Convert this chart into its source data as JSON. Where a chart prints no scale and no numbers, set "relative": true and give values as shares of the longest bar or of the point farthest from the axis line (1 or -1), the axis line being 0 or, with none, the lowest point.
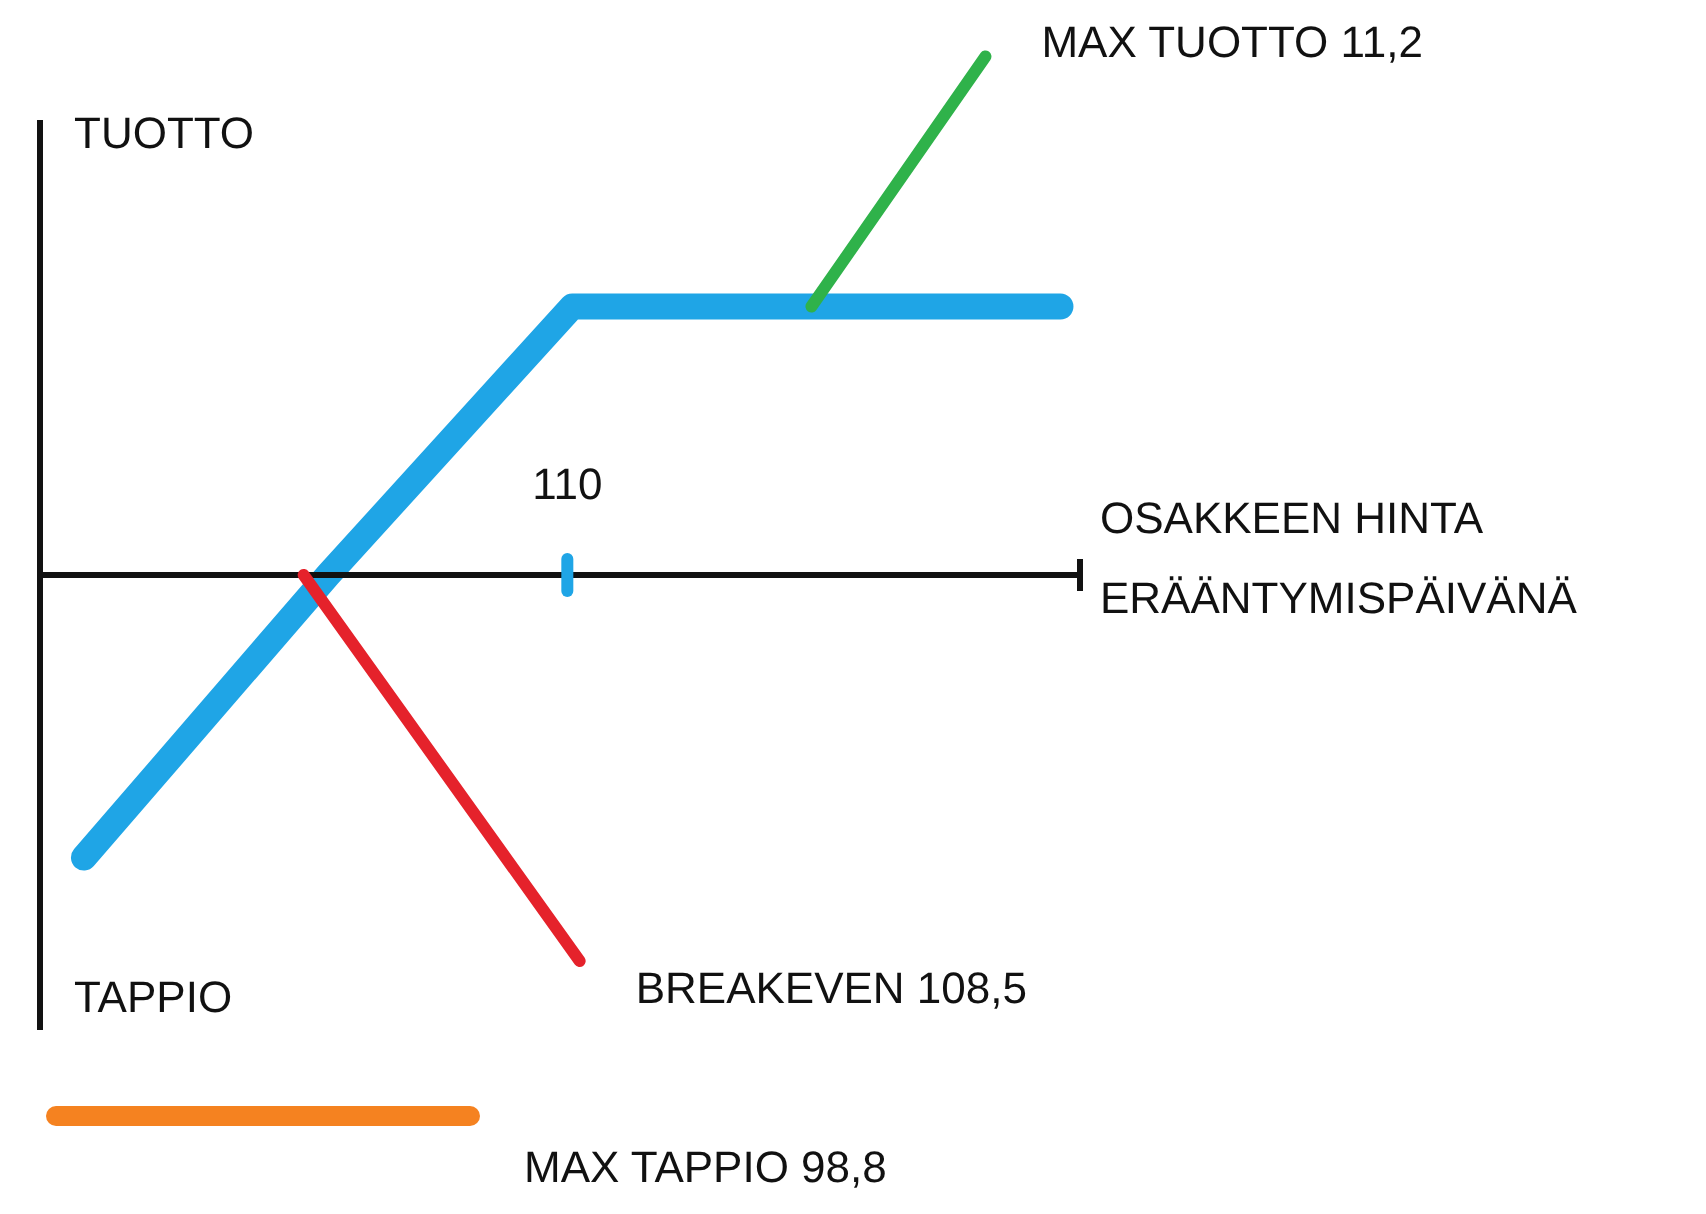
{
  "chart_data": {
    "type": "line",
    "relative": true,
    "ylabel": "TUOTTO",
    "xlabel": "OSAKKEEN HINTA\nERÄÄNTYMISPÄIVÄNÄ",
    "categories": [
      null,
      null,
      null,
      null,
      null
    ],
    "series": [
      {
        "color": "#1fa5e6",
        "values": [
          -1,
          0,
          0.95,
          0.95,
          0.95
        ]
      }
    ],
    "grid": false,
    "legend": false,
    "marker": "none",
    "line_style": "solid",
    "annotations": [
      "MAX TUOTTO 11,2",
      "BREAKEVEN 108,5",
      "110",
      "TAPPIO",
      "MAX TAPPIO 98,8"
    ]
  }
}
